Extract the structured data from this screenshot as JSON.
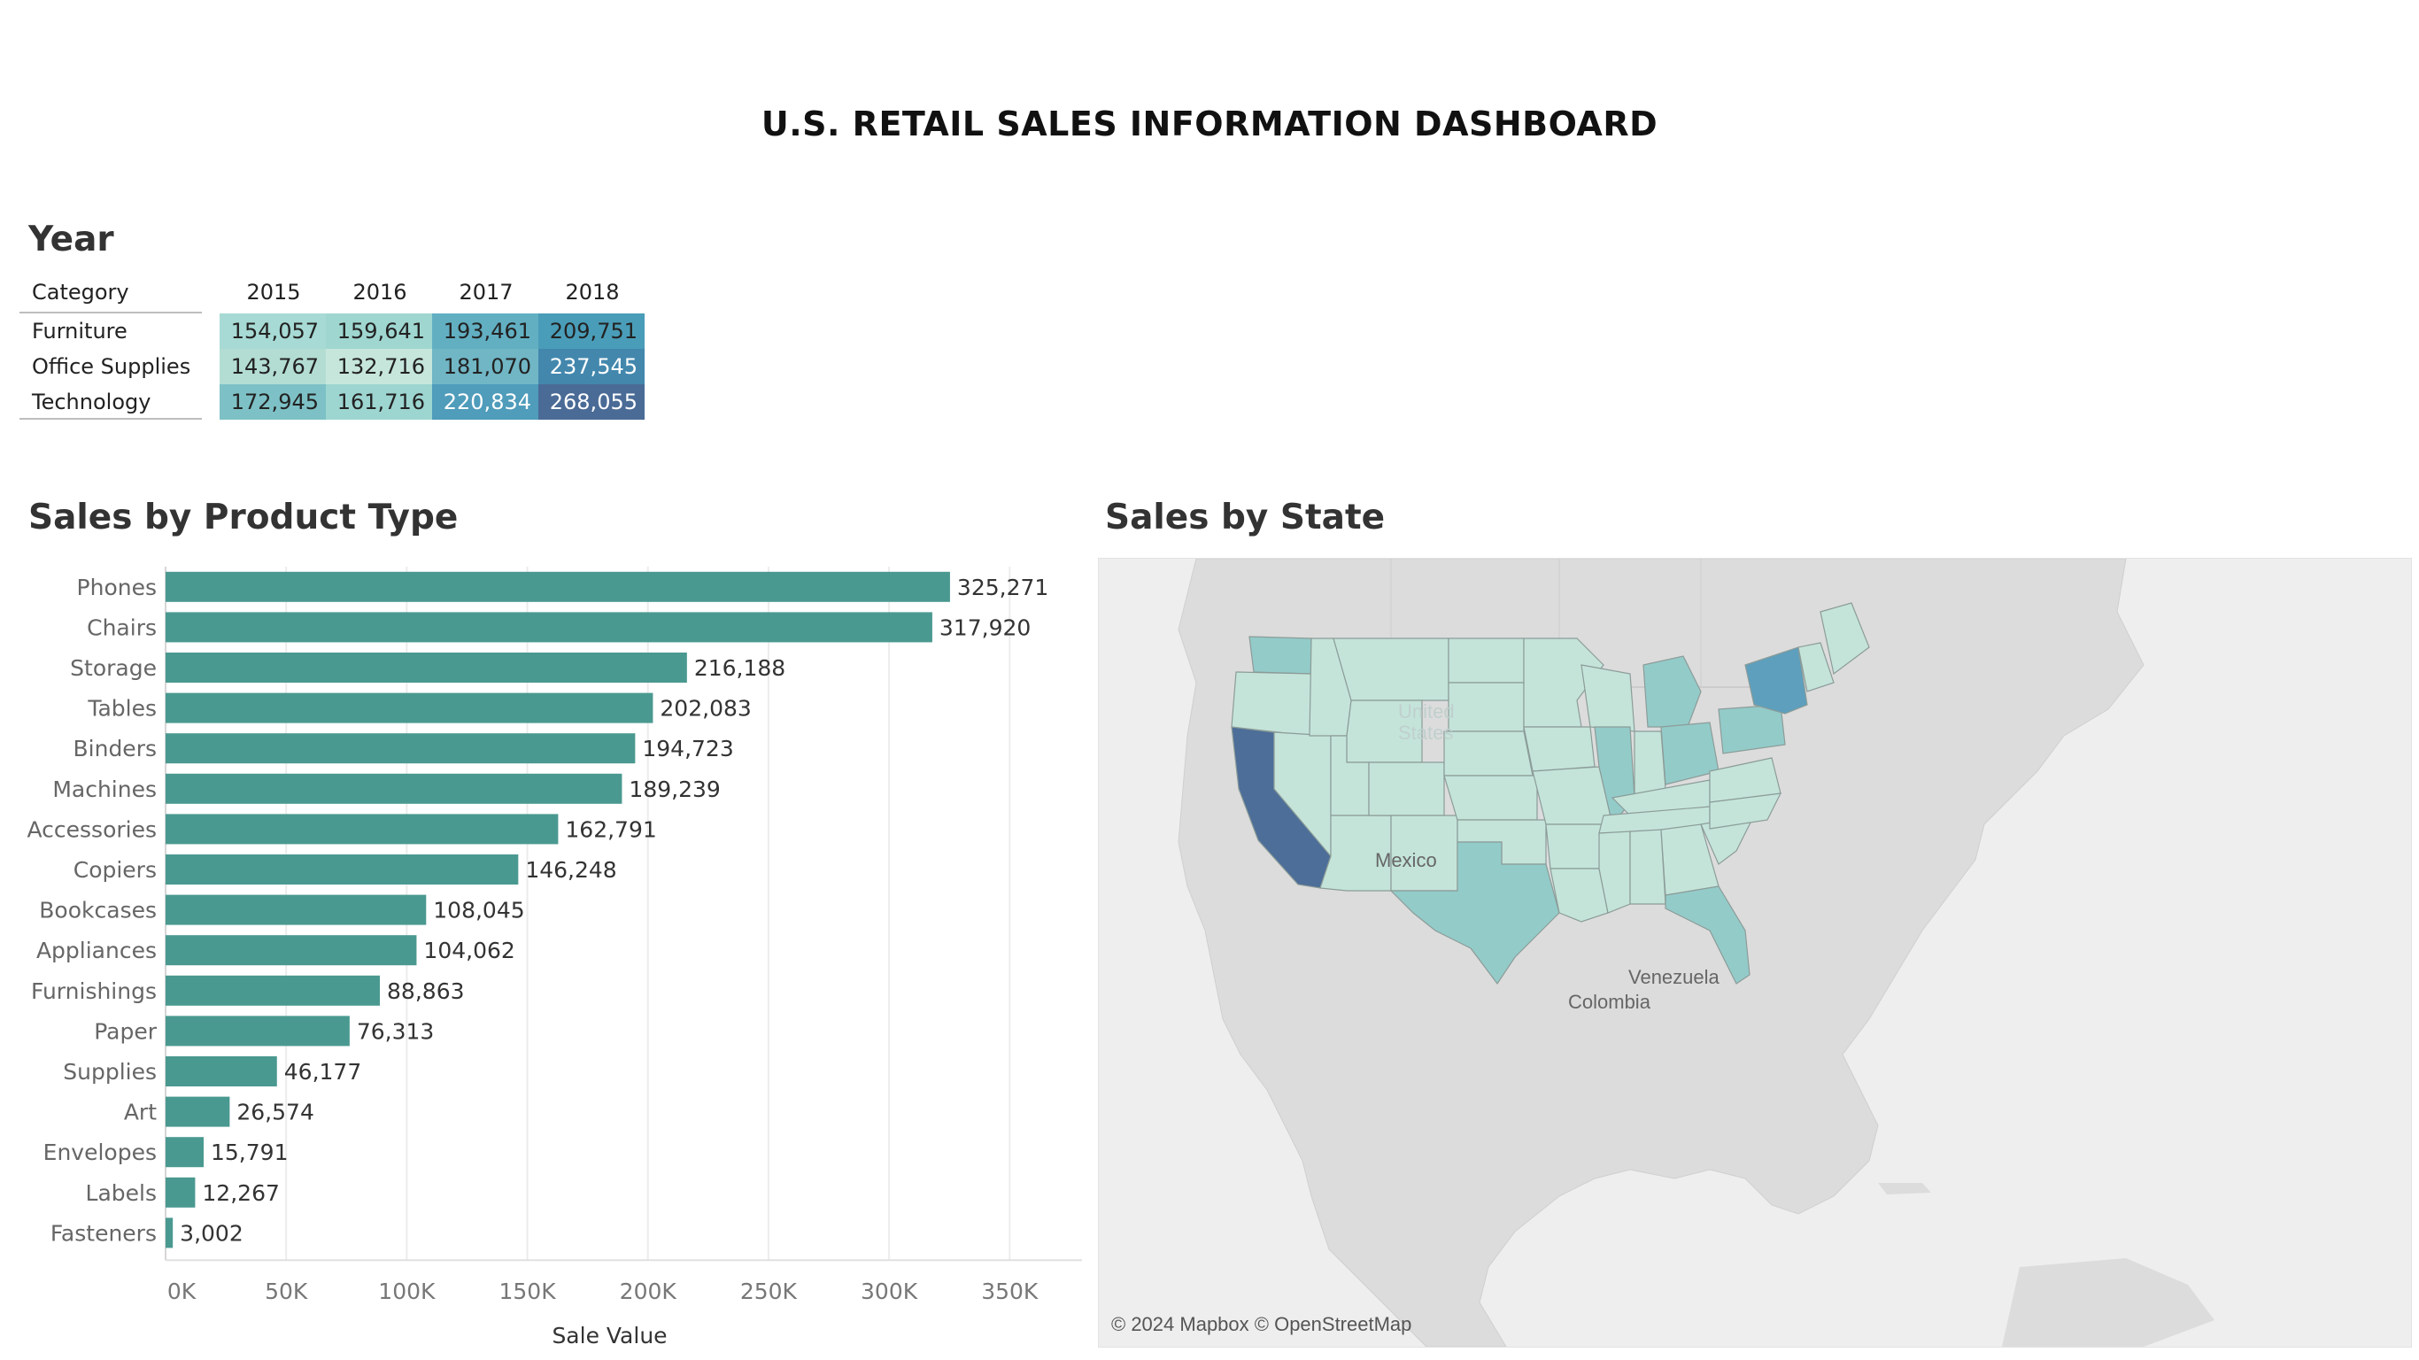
{
  "dashboard": {
    "title": "U.S. RETAIL SALES INFORMATION DASHBOARD"
  },
  "year_table": {
    "title": "Year",
    "row_header": "Category",
    "years": [
      "2015",
      "2016",
      "2017",
      "2018"
    ],
    "rows": [
      {
        "category": "Furniture",
        "values": [
          "154,057",
          "159,641",
          "193,461",
          "209,751"
        ]
      },
      {
        "category": "Office Supplies",
        "values": [
          "143,767",
          "132,716",
          "181,070",
          "237,545"
        ]
      },
      {
        "category": "Technology",
        "values": [
          "172,945",
          "161,716",
          "220,834",
          "268,055"
        ]
      }
    ],
    "colors": [
      [
        "#a7dad4",
        "#9fd6d0",
        "#62afc2",
        "#4a9db8"
      ],
      [
        "#b3ddd3",
        "#c6e6dc",
        "#70b6c5",
        "#4387ad"
      ],
      [
        "#7dc1c6",
        "#9dd5d0",
        "#4f9cbb",
        "#4a6b96"
      ]
    ],
    "text_colors": [
      [
        "#222",
        "#222",
        "#222",
        "#222"
      ],
      [
        "#222",
        "#222",
        "#222",
        "#ffffff"
      ],
      [
        "#222",
        "#222",
        "#ffffff",
        "#ffffff"
      ]
    ]
  },
  "chart_data": {
    "type": "bar",
    "orientation": "horizontal",
    "title": "Sales by Product Type",
    "xlabel": "Sale Value",
    "ylabel": "",
    "categories": [
      "Phones",
      "Chairs",
      "Storage",
      "Tables",
      "Binders",
      "Machines",
      "Accessories",
      "Copiers",
      "Bookcases",
      "Appliances",
      "Furnishings",
      "Paper",
      "Supplies",
      "Art",
      "Envelopes",
      "Labels",
      "Fasteners"
    ],
    "values": [
      325271,
      317920,
      216188,
      202083,
      194723,
      189239,
      162791,
      146248,
      108045,
      104062,
      88863,
      76313,
      46177,
      26574,
      15791,
      12267,
      3002
    ],
    "value_labels": [
      "325,271",
      "317,920",
      "216,188",
      "202,083",
      "194,723",
      "189,239",
      "162,791",
      "146,248",
      "108,045",
      "104,062",
      "88,863",
      "76,313",
      "46,177",
      "26,574",
      "15,791",
      "12,267",
      "3,002"
    ],
    "xlim": [
      0,
      380000
    ],
    "xticks": [
      0,
      50000,
      100000,
      150000,
      200000,
      250000,
      300000,
      350000
    ],
    "xtick_labels": [
      "0K",
      "50K",
      "100K",
      "150K",
      "200K",
      "250K",
      "300K",
      "350K"
    ],
    "bar_color": "#4a9990",
    "grid": true
  },
  "map": {
    "title": "Sales by State",
    "credit": "© 2024 Mapbox © OpenStreetMap",
    "labels": {
      "united_states": "United States",
      "mexico": "Mexico",
      "venezuela": "Venezuela",
      "colombia": "Colombia"
    },
    "colors": {
      "land": "#dcdcdc",
      "water": "#eeeeee",
      "low": "#c4e4da",
      "mid": "#93cbc9",
      "high": "#5d9fbd",
      "top": "#4c6e98"
    }
  }
}
